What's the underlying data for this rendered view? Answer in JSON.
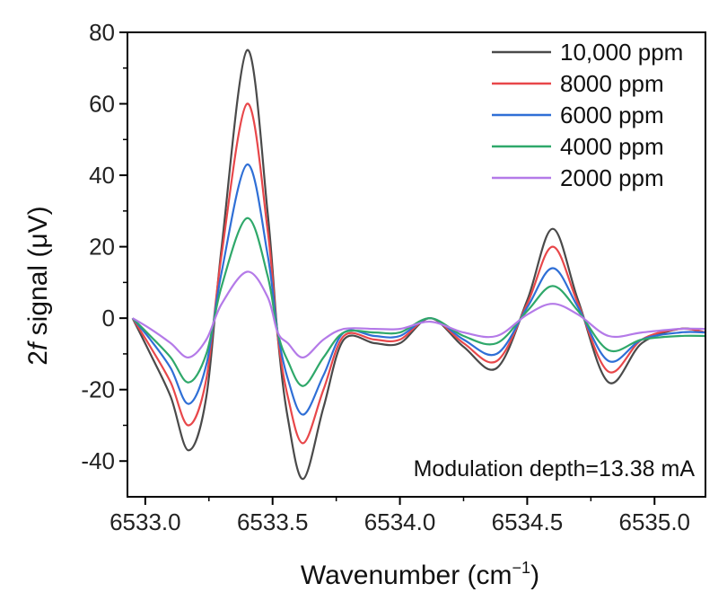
{
  "chart_data": {
    "type": "line",
    "title": "",
    "xlabel": "Wavenumber (cm",
    "xlabel_sup": "−1",
    "xlabel_close": ")",
    "ylabel_pre": "2",
    "ylabel_italic": "f",
    "ylabel_post": " signal (μV)",
    "xlim": [
      6532.93,
      6535.2
    ],
    "ylim": [
      -50,
      80
    ],
    "xticks": [
      6533.0,
      6533.5,
      6534.0,
      6534.5,
      6535.0
    ],
    "xtick_labels": [
      "6533.0",
      "6533.5",
      "6534.0",
      "6534.5",
      "6535.0"
    ],
    "yticks": [
      -40,
      -20,
      0,
      20,
      40,
      60,
      80
    ],
    "ytick_labels": [
      "-40",
      "-20",
      "0",
      "20",
      "40",
      "60",
      "80"
    ],
    "annotation": "Modulation depth=13.38 mA",
    "legend_position": "top-right",
    "x": [
      6532.95,
      6533.02,
      6533.1,
      6533.17,
      6533.24,
      6533.3,
      6533.4,
      6533.48,
      6533.52,
      6533.56,
      6533.62,
      6533.7,
      6533.78,
      6533.9,
      6534.0,
      6534.12,
      6534.25,
      6534.38,
      6534.5,
      6534.6,
      6534.7,
      6534.82,
      6534.95,
      6535.1,
      6535.2
    ],
    "series": [
      {
        "name": "10,000 ppm",
        "color": "#4a4a4a",
        "values": [
          0,
          -10,
          -22,
          -37,
          -22,
          20,
          75,
          30,
          -5,
          -28,
          -45,
          -25,
          -6,
          -7,
          -7,
          0,
          -8,
          -14,
          5,
          25,
          5,
          -18,
          -7,
          -3,
          -4
        ]
      },
      {
        "name": "8000 ppm",
        "color": "#e8474a",
        "values": [
          0,
          -8,
          -18,
          -30,
          -17,
          18,
          60,
          25,
          -5,
          -22,
          -35,
          -20,
          -5,
          -6,
          -6,
          0,
          -7,
          -12,
          4,
          20,
          4,
          -15,
          -6,
          -3,
          -4
        ]
      },
      {
        "name": "6000 ppm",
        "color": "#2f6fd6",
        "values": [
          0,
          -6,
          -14,
          -24,
          -13,
          13,
          43,
          18,
          -4,
          -17,
          -27,
          -16,
          -4,
          -5,
          -5,
          0,
          -6,
          -10,
          3,
          14,
          3,
          -12,
          -6,
          -4,
          -4
        ]
      },
      {
        "name": "4000 ppm",
        "color": "#2fa86a",
        "values": [
          0,
          -5,
          -11,
          -18,
          -10,
          9,
          28,
          12,
          -4,
          -12,
          -19,
          -11,
          -4,
          -4,
          -4,
          0,
          -5,
          -7,
          2,
          9,
          2,
          -9,
          -6,
          -5,
          -5
        ]
      },
      {
        "name": "2000 ppm",
        "color": "#b47ae8",
        "values": [
          0,
          -3,
          -7,
          -11,
          -6,
          4,
          13,
          6,
          -4,
          -7,
          -11,
          -6,
          -3,
          -3,
          -3,
          -1,
          -4,
          -5,
          1,
          4,
          1,
          -5,
          -4,
          -3,
          -3
        ]
      }
    ]
  }
}
